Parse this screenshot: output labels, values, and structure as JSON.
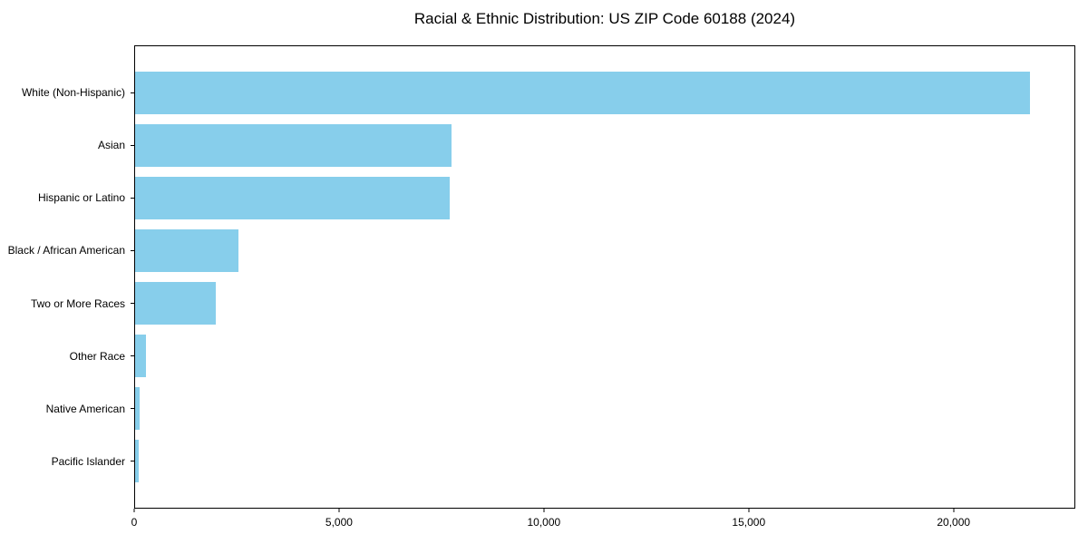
{
  "chart_data": {
    "type": "bar",
    "orientation": "horizontal",
    "title": "Racial & Ethnic Distribution: US ZIP Code 60188 (2024)",
    "categories": [
      "White (Non-Hispanic)",
      "Asian",
      "Hispanic or Latino",
      "Black / African American",
      "Two or More Races",
      "Other Race",
      "Native American",
      "Pacific Islander"
    ],
    "values": [
      21860,
      7740,
      7680,
      2520,
      1970,
      270,
      110,
      85
    ],
    "bar_color": "#87CEEB",
    "xlabel": "",
    "ylabel": "",
    "xlim": [
      0,
      22950
    ],
    "xticks": [
      {
        "value": 0,
        "label": "0"
      },
      {
        "value": 5000,
        "label": "5,000"
      },
      {
        "value": 10000,
        "label": "10,000"
      },
      {
        "value": 15000,
        "label": "15,000"
      },
      {
        "value": 20000,
        "label": "20,000"
      }
    ],
    "grid": false,
    "legend": "none"
  }
}
